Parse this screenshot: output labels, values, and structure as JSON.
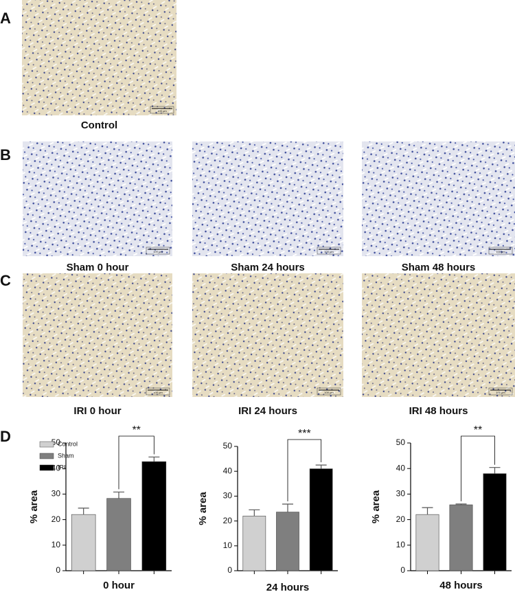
{
  "panels": {
    "a": "A",
    "b": "B",
    "c": "C",
    "d": "D"
  },
  "scale_bar": "100 μm",
  "images": {
    "control": "Control",
    "sham": [
      "Sham 0 hour",
      "Sham 24 hours",
      "Sham 48 hours"
    ],
    "iri": [
      "IRI 0 hour",
      "IRI 24 hours",
      "IRI 48 hours"
    ]
  },
  "chart_data": [
    {
      "type": "bar",
      "x_label": "0 hour",
      "y_label": "% area",
      "annotation": "**",
      "legend": true,
      "ylim": [
        0,
        50
      ],
      "yticks": [
        0,
        10,
        20,
        30,
        40,
        50
      ],
      "series": [
        {
          "name": "Control",
          "color": "#d0d0d0",
          "values": [
            22
          ],
          "errors": [
            2.5
          ]
        },
        {
          "name": "Sham",
          "color": "#7f7f7f",
          "values": [
            28.3
          ],
          "errors": [
            2.5
          ]
        },
        {
          "name": "IRI",
          "color": "#000000",
          "values": [
            42.7
          ],
          "errors": [
            1.8
          ]
        }
      ]
    },
    {
      "type": "bar",
      "x_label": "24 hours",
      "y_label": "% area",
      "annotation": "***",
      "legend": false,
      "ylim": [
        0,
        50
      ],
      "yticks": [
        0,
        10,
        20,
        30,
        40,
        50
      ],
      "series": [
        {
          "color": "#d0d0d0",
          "values": [
            22
          ],
          "errors": [
            2.5
          ]
        },
        {
          "color": "#7f7f7f",
          "values": [
            23.6
          ],
          "errors": [
            3.2
          ]
        },
        {
          "color": "#000000",
          "values": [
            41
          ],
          "errors": [
            1.5
          ]
        }
      ]
    },
    {
      "type": "bar",
      "x_label": "48 hours",
      "y_label": "% area",
      "annotation": "**",
      "legend": false,
      "ylim": [
        0,
        50
      ],
      "yticks": [
        0,
        10,
        20,
        30,
        40,
        50
      ],
      "series": [
        {
          "color": "#d0d0d0",
          "values": [
            22
          ],
          "errors": [
            2.7
          ]
        },
        {
          "color": "#7f7f7f",
          "values": [
            25.8
          ],
          "errors": [
            0.3
          ]
        },
        {
          "color": "#000000",
          "values": [
            38
          ],
          "errors": [
            2.4
          ]
        }
      ]
    }
  ]
}
